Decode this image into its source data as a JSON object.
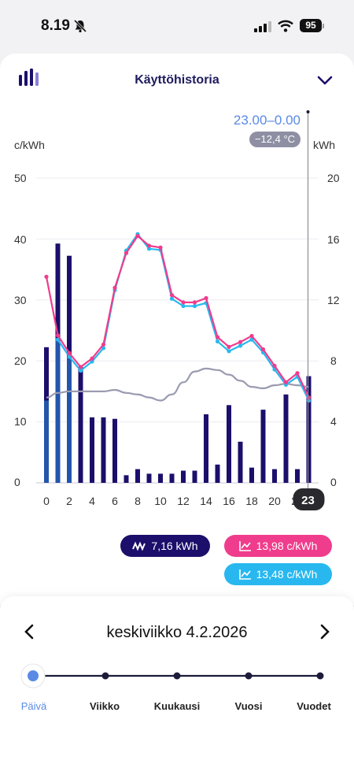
{
  "status_bar": {
    "time": "8.19",
    "battery": "95"
  },
  "header": {
    "title": "Käyttöhistoria"
  },
  "chart_info": {
    "time_range": "23.00–0.00",
    "temperature": "−12,4 °C"
  },
  "chart_data": {
    "type": "bar",
    "x": [
      0,
      1,
      2,
      3,
      4,
      5,
      6,
      7,
      8,
      9,
      10,
      11,
      12,
      13,
      14,
      15,
      16,
      17,
      18,
      19,
      20,
      21,
      22,
      23
    ],
    "x_tick_labels": [
      "0",
      "2",
      "4",
      "6",
      "8",
      "10",
      "12",
      "14",
      "16",
      "18",
      "20",
      "22",
      "23"
    ],
    "xlim": [
      0,
      23
    ],
    "left_axis": {
      "label": "c/kWh",
      "lim": [
        0,
        50
      ],
      "ticks": [
        "0",
        "10",
        "20",
        "30",
        "40",
        "50"
      ]
    },
    "right_axis": {
      "label": "kWh",
      "lim": [
        0,
        20
      ],
      "ticks": [
        "0",
        "4",
        "8",
        "12",
        "16",
        "20"
      ]
    },
    "grid": true,
    "selected_x": 23,
    "series": [
      {
        "type": "bar",
        "axis": "right",
        "color": "#1b0f6b",
        "values": [
          8.9,
          15.7,
          14.9,
          7.6,
          4.3,
          4.3,
          4.2,
          0.5,
          0.9,
          0.6,
          0.6,
          0.6,
          0.8,
          0.8,
          4.5,
          1.2,
          5.1,
          2.7,
          1.0,
          4.8,
          0.9,
          5.8,
          0.9,
          7.0
        ],
        "secondary_values": [
          5.4,
          9.5,
          8.3,
          null,
          null,
          null,
          null,
          null,
          null,
          null,
          null,
          null,
          null,
          null,
          null,
          null,
          null,
          null,
          null,
          null,
          null,
          null,
          null,
          null
        ]
      },
      {
        "type": "line",
        "axis": "left",
        "color": "#28b8ef",
        "values": [
          null,
          23.5,
          20.7,
          18.4,
          19.9,
          22.1,
          31.6,
          38.1,
          40.8,
          38.4,
          38.2,
          30.2,
          29.0,
          29.0,
          29.5,
          23.2,
          21.6,
          22.5,
          23.5,
          21.4,
          18.6,
          16.1,
          17.4,
          13.5
        ]
      },
      {
        "type": "line",
        "axis": "left",
        "color": "#f03c8c",
        "values": [
          33.8,
          24.2,
          21.3,
          19.0,
          20.4,
          22.7,
          32.0,
          37.7,
          40.5,
          38.9,
          38.6,
          30.8,
          29.6,
          29.6,
          30.3,
          23.9,
          22.3,
          23.1,
          24.1,
          21.9,
          19.2,
          16.5,
          18.0,
          14.0
        ]
      },
      {
        "type": "line",
        "axis": "right",
        "color": "#9a9bb0",
        "values": [
          5.6,
          5.9,
          6.0,
          6.0,
          6.0,
          6.0,
          6.1,
          5.9,
          5.8,
          5.6,
          5.4,
          5.8,
          6.6,
          7.3,
          7.5,
          7.4,
          7.1,
          6.7,
          6.3,
          6.2,
          6.4,
          6.5,
          6.4,
          6.3
        ]
      }
    ]
  },
  "legend": {
    "kwh": "7,16 kWh",
    "price_pink": "13,98 c/kWh",
    "price_blue": "13,48 c/kWh"
  },
  "date_nav": {
    "date": "keskiviikko 4.2.2026"
  },
  "periods": [
    "Päivä",
    "Viikko",
    "Kuukausi",
    "Vuosi",
    "Vuodet"
  ],
  "colors": {
    "accent": "#5a8ae6",
    "bar": "#1b0f6b",
    "pink": "#f03c8c",
    "cyan": "#28b8ef"
  }
}
